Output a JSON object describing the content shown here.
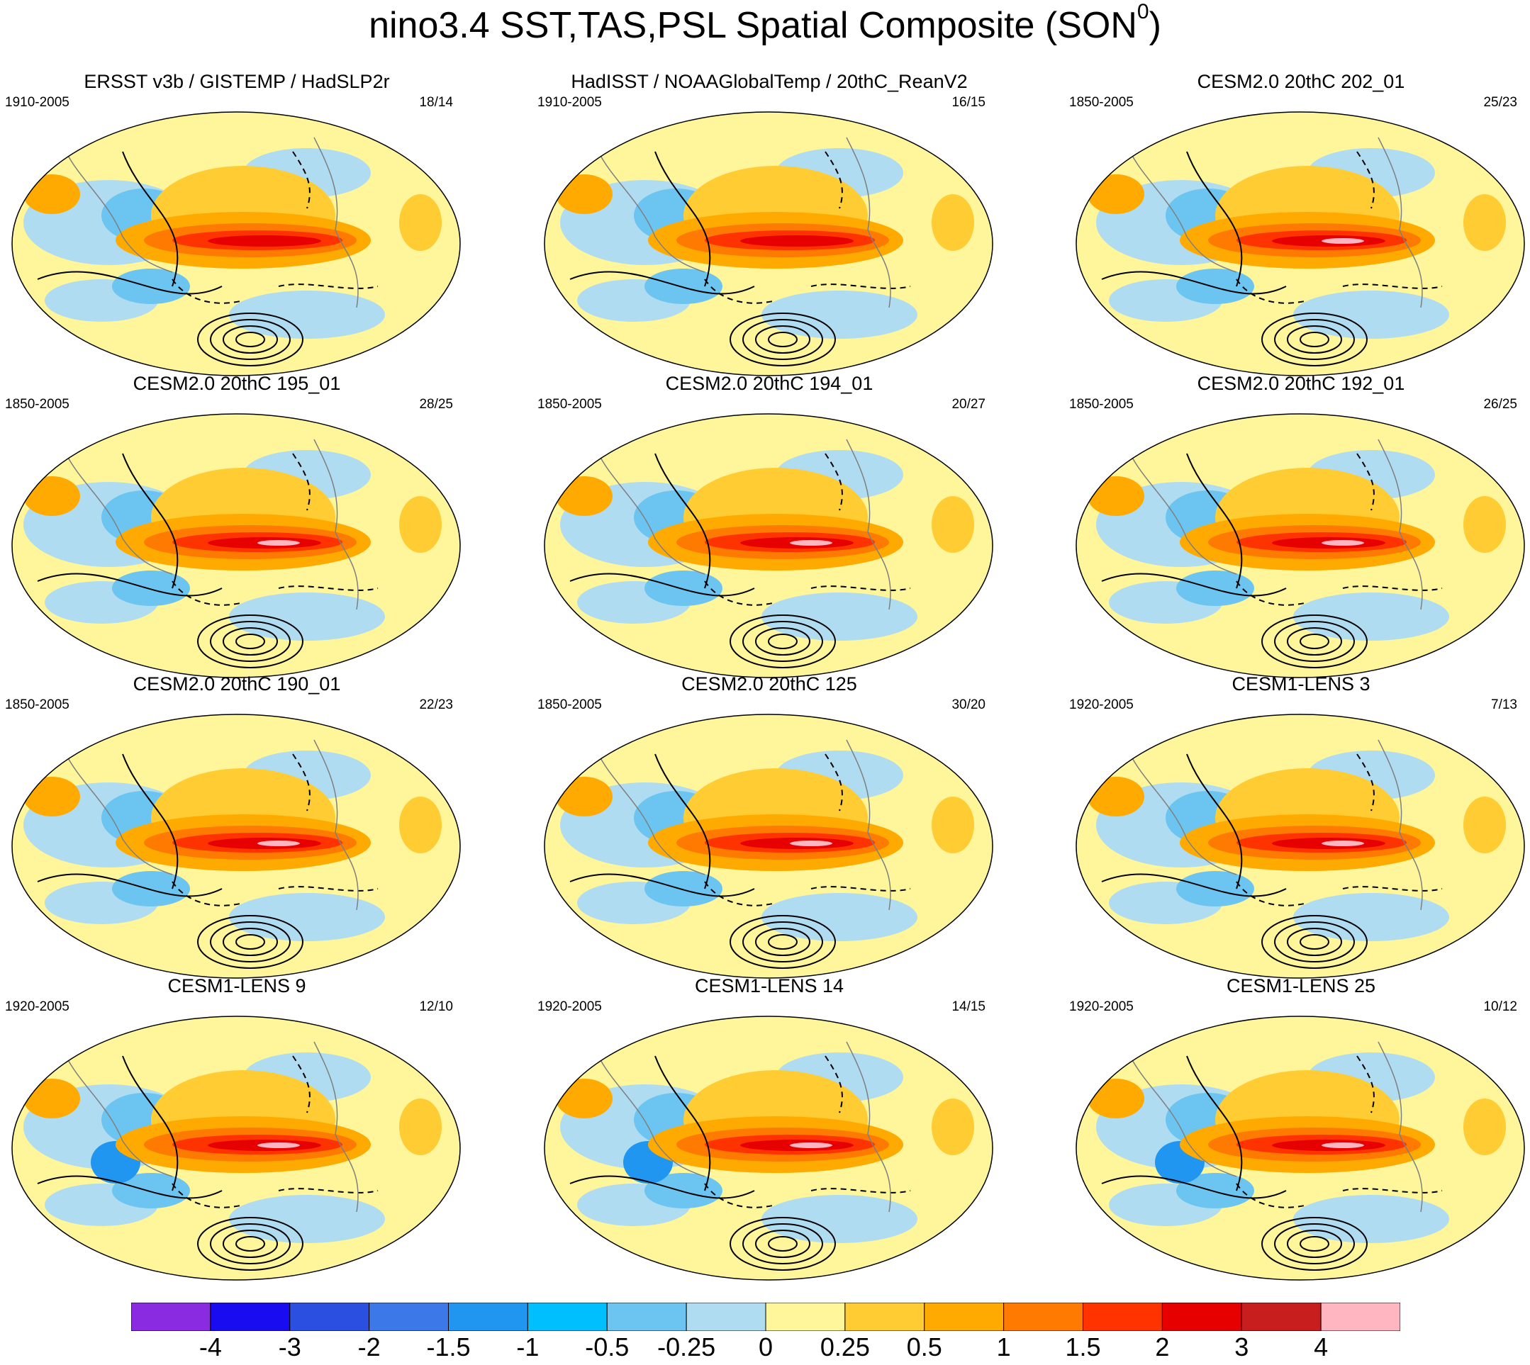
{
  "title": {
    "main": "nino3.4 SST,TAS,PSL Spatial Composite (SON",
    "superscript": "0",
    "close": ")"
  },
  "panels": [
    {
      "title": "ERSST v3b / GISTEMP / HadSLP2r",
      "years": "1910-2005",
      "count": "18/14"
    },
    {
      "title": "HadISST / NOAAGlobalTemp / 20thC_ReanV2",
      "years": "1910-2005",
      "count": "16/15"
    },
    {
      "title": "CESM2.0 20thC 202_01",
      "years": "1850-2005",
      "count": "25/23"
    },
    {
      "title": "CESM2.0 20thC 195_01",
      "years": "1850-2005",
      "count": "28/25"
    },
    {
      "title": "CESM2.0 20thC 194_01",
      "years": "1850-2005",
      "count": "20/27"
    },
    {
      "title": "CESM2.0 20thC 192_01",
      "years": "1850-2005",
      "count": "26/25"
    },
    {
      "title": "CESM2.0 20thC 190_01",
      "years": "1850-2005",
      "count": "22/23"
    },
    {
      "title": "CESM2.0 20thC 125",
      "years": "1850-2005",
      "count": "30/20"
    },
    {
      "title": "CESM1-LENS 3",
      "years": "1920-2005",
      "count": "7/13"
    },
    {
      "title": "CESM1-LENS 9",
      "years": "1920-2005",
      "count": "12/10"
    },
    {
      "title": "CESM1-LENS 14",
      "years": "1920-2005",
      "count": "14/15"
    },
    {
      "title": "CESM1-LENS 25",
      "years": "1920-2005",
      "count": "10/12"
    }
  ],
  "colorbar": {
    "labels": [
      "-4",
      "-3",
      "-2",
      "-1.5",
      "-1",
      "-0.5",
      "-0.25",
      "0",
      "0.25",
      "0.5",
      "1",
      "1.5",
      "2",
      "3",
      "4"
    ],
    "colors": [
      "#8a2be2",
      "#1a0cf0",
      "#2b4fe0",
      "#3c78e8",
      "#2196f0",
      "#00bfff",
      "#6cc4f0",
      "#b0dcf2",
      "#fff59a",
      "#ffcc33",
      "#ffaa00",
      "#ff7a00",
      "#ff3300",
      "#e60000",
      "#c81e1e",
      "#ffb6c1"
    ]
  }
}
